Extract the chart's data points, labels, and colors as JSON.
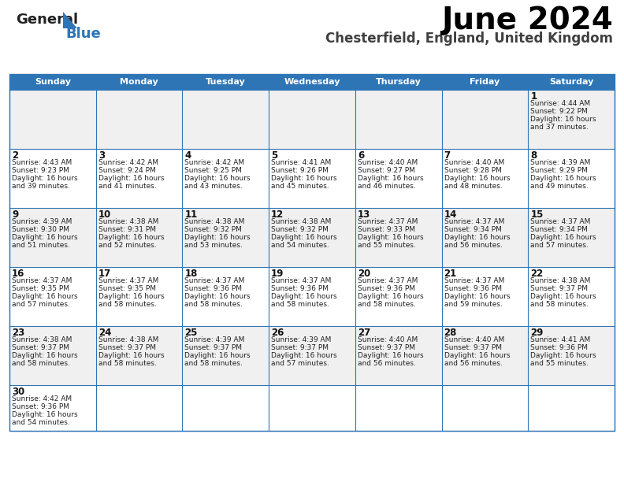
{
  "title": "June 2024",
  "subtitle": "Chesterfield, England, United Kingdom",
  "days_of_week": [
    "Sunday",
    "Monday",
    "Tuesday",
    "Wednesday",
    "Thursday",
    "Friday",
    "Saturday"
  ],
  "header_bg": "#2E75B6",
  "header_text": "#FFFFFF",
  "row_bg_odd": "#F0F0F0",
  "row_bg_even": "#FFFFFF",
  "cell_border": "#2E75B6",
  "day_number_color": "#000000",
  "cell_text_color": "#333333",
  "calendar_data": [
    [
      null,
      null,
      null,
      null,
      null,
      null,
      {
        "day": "1",
        "sunrise": "4:44 AM",
        "sunset": "9:22 PM",
        "daylight_h": "16 hours",
        "daylight_m": "and 37 minutes."
      }
    ],
    [
      {
        "day": "2",
        "sunrise": "4:43 AM",
        "sunset": "9:23 PM",
        "daylight_h": "16 hours",
        "daylight_m": "and 39 minutes."
      },
      {
        "day": "3",
        "sunrise": "4:42 AM",
        "sunset": "9:24 PM",
        "daylight_h": "16 hours",
        "daylight_m": "and 41 minutes."
      },
      {
        "day": "4",
        "sunrise": "4:42 AM",
        "sunset": "9:25 PM",
        "daylight_h": "16 hours",
        "daylight_m": "and 43 minutes."
      },
      {
        "day": "5",
        "sunrise": "4:41 AM",
        "sunset": "9:26 PM",
        "daylight_h": "16 hours",
        "daylight_m": "and 45 minutes."
      },
      {
        "day": "6",
        "sunrise": "4:40 AM",
        "sunset": "9:27 PM",
        "daylight_h": "16 hours",
        "daylight_m": "and 46 minutes."
      },
      {
        "day": "7",
        "sunrise": "4:40 AM",
        "sunset": "9:28 PM",
        "daylight_h": "16 hours",
        "daylight_m": "and 48 minutes."
      },
      {
        "day": "8",
        "sunrise": "4:39 AM",
        "sunset": "9:29 PM",
        "daylight_h": "16 hours",
        "daylight_m": "and 49 minutes."
      }
    ],
    [
      {
        "day": "9",
        "sunrise": "4:39 AM",
        "sunset": "9:30 PM",
        "daylight_h": "16 hours",
        "daylight_m": "and 51 minutes."
      },
      {
        "day": "10",
        "sunrise": "4:38 AM",
        "sunset": "9:31 PM",
        "daylight_h": "16 hours",
        "daylight_m": "and 52 minutes."
      },
      {
        "day": "11",
        "sunrise": "4:38 AM",
        "sunset": "9:32 PM",
        "daylight_h": "16 hours",
        "daylight_m": "and 53 minutes."
      },
      {
        "day": "12",
        "sunrise": "4:38 AM",
        "sunset": "9:32 PM",
        "daylight_h": "16 hours",
        "daylight_m": "and 54 minutes."
      },
      {
        "day": "13",
        "sunrise": "4:37 AM",
        "sunset": "9:33 PM",
        "daylight_h": "16 hours",
        "daylight_m": "and 55 minutes."
      },
      {
        "day": "14",
        "sunrise": "4:37 AM",
        "sunset": "9:34 PM",
        "daylight_h": "16 hours",
        "daylight_m": "and 56 minutes."
      },
      {
        "day": "15",
        "sunrise": "4:37 AM",
        "sunset": "9:34 PM",
        "daylight_h": "16 hours",
        "daylight_m": "and 57 minutes."
      }
    ],
    [
      {
        "day": "16",
        "sunrise": "4:37 AM",
        "sunset": "9:35 PM",
        "daylight_h": "16 hours",
        "daylight_m": "and 57 minutes."
      },
      {
        "day": "17",
        "sunrise": "4:37 AM",
        "sunset": "9:35 PM",
        "daylight_h": "16 hours",
        "daylight_m": "and 58 minutes."
      },
      {
        "day": "18",
        "sunrise": "4:37 AM",
        "sunset": "9:36 PM",
        "daylight_h": "16 hours",
        "daylight_m": "and 58 minutes."
      },
      {
        "day": "19",
        "sunrise": "4:37 AM",
        "sunset": "9:36 PM",
        "daylight_h": "16 hours",
        "daylight_m": "and 58 minutes."
      },
      {
        "day": "20",
        "sunrise": "4:37 AM",
        "sunset": "9:36 PM",
        "daylight_h": "16 hours",
        "daylight_m": "and 58 minutes."
      },
      {
        "day": "21",
        "sunrise": "4:37 AM",
        "sunset": "9:36 PM",
        "daylight_h": "16 hours",
        "daylight_m": "and 59 minutes."
      },
      {
        "day": "22",
        "sunrise": "4:38 AM",
        "sunset": "9:37 PM",
        "daylight_h": "16 hours",
        "daylight_m": "and 58 minutes."
      }
    ],
    [
      {
        "day": "23",
        "sunrise": "4:38 AM",
        "sunset": "9:37 PM",
        "daylight_h": "16 hours",
        "daylight_m": "and 58 minutes."
      },
      {
        "day": "24",
        "sunrise": "4:38 AM",
        "sunset": "9:37 PM",
        "daylight_h": "16 hours",
        "daylight_m": "and 58 minutes."
      },
      {
        "day": "25",
        "sunrise": "4:39 AM",
        "sunset": "9:37 PM",
        "daylight_h": "16 hours",
        "daylight_m": "and 58 minutes."
      },
      {
        "day": "26",
        "sunrise": "4:39 AM",
        "sunset": "9:37 PM",
        "daylight_h": "16 hours",
        "daylight_m": "and 57 minutes."
      },
      {
        "day": "27",
        "sunrise": "4:40 AM",
        "sunset": "9:37 PM",
        "daylight_h": "16 hours",
        "daylight_m": "and 56 minutes."
      },
      {
        "day": "28",
        "sunrise": "4:40 AM",
        "sunset": "9:37 PM",
        "daylight_h": "16 hours",
        "daylight_m": "and 56 minutes."
      },
      {
        "day": "29",
        "sunrise": "4:41 AM",
        "sunset": "9:36 PM",
        "daylight_h": "16 hours",
        "daylight_m": "and 55 minutes."
      }
    ],
    [
      {
        "day": "30",
        "sunrise": "4:42 AM",
        "sunset": "9:36 PM",
        "daylight_h": "16 hours",
        "daylight_m": "and 54 minutes."
      },
      null,
      null,
      null,
      null,
      null,
      null
    ]
  ]
}
